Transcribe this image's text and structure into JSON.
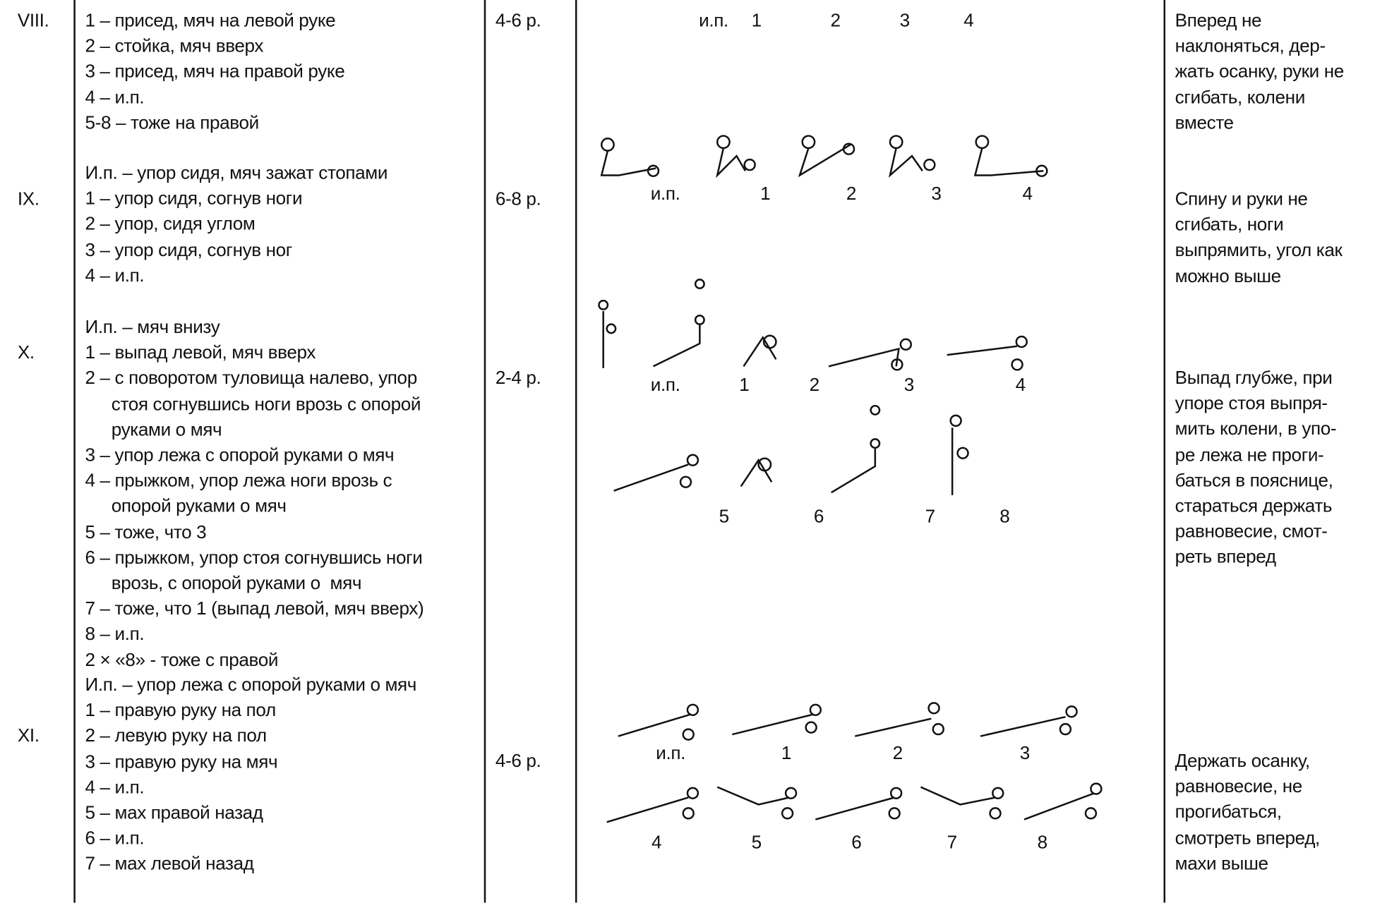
{
  "rows": [
    {
      "number": "VIII.",
      "dosage": "4-6 р.",
      "lines": [
        "1 – присед, мяч на левой руке",
        "2 – стойка, мяч вверх",
        "3 – присед, мяч на правой руке",
        "4 – и.п.",
        "5-8 – тоже на правой"
      ],
      "figure_labels": [
        "и.п.",
        "1",
        "2",
        "3",
        "4"
      ],
      "notes": [
        "Вперед не",
        "наклоняться, дер-",
        "жать осанку, руки не",
        "сгибать, колени",
        "вместе"
      ]
    },
    {
      "number": "IX.",
      "dosage": "6-8 р.",
      "lines": [
        "И.п. – упор сидя, мяч зажат стопами",
        "1 – упор сидя, согнув ноги",
        "2 – упор, сидя углом",
        "3 – упор сидя, согнув ног",
        "4 – и.п."
      ],
      "figure_labels": [
        "и.п.",
        "1",
        "2",
        "3",
        "4"
      ],
      "notes": [
        "Спину и руки не",
        "сгибать, ноги",
        "выпрямить, угол как",
        "можно выше"
      ]
    },
    {
      "number": "X.",
      "dosage": "2-4 р.",
      "lines": [
        "И.п. – мяч внизу",
        "1 – выпад левой, мяч вверх",
        "2 – с поворотом туловища налево, упор",
        "стоя согнувшись ноги врозь с опорой",
        "руками о мяч",
        "3 – упор лежа с опорой руками о мяч",
        "4 – прыжком, упор лежа ноги врозь с",
        "опорой руками о мяч",
        "5 – тоже, что 3",
        "6 – прыжком, упор стоя согнувшись ноги",
        "врозь, с опорой руками о  мяч",
        "7 – тоже, что 1 (выпад левой, мяч вверх)",
        "8 – и.п.",
        "2 × «8» - тоже с правой"
      ],
      "figure_labels": [
        "и.п.",
        "1",
        "2",
        "3",
        "4",
        "5",
        "6",
        "7",
        "8"
      ],
      "notes": [
        "Выпад глубже, при",
        "упоре стоя выпря-",
        "мить колени, в упо-",
        "ре лежа не проги-",
        "баться в пояснице,",
        "стараться держать",
        "равновесие, смот-",
        "реть вперед"
      ]
    },
    {
      "number": "XI.",
      "dosage": "4-6 р.",
      "lines": [
        "И.п. – упор лежа с опорой руками о мяч",
        "1 – правую руку на пол",
        "2 – левую руку на пол",
        "3 – правую руку на мяч",
        "4 – и.п.",
        "5 – мах правой назад",
        "6 – и.п.",
        "7 – мах левой назад"
      ],
      "figure_labels": [
        "и.п.",
        "1",
        "2",
        "3",
        "4",
        "5",
        "6",
        "7",
        "8"
      ],
      "notes": [
        "Держать осанку,",
        "равновесие, не",
        "прогибаться,",
        "смотреть вперед,",
        "махи выше"
      ]
    }
  ]
}
